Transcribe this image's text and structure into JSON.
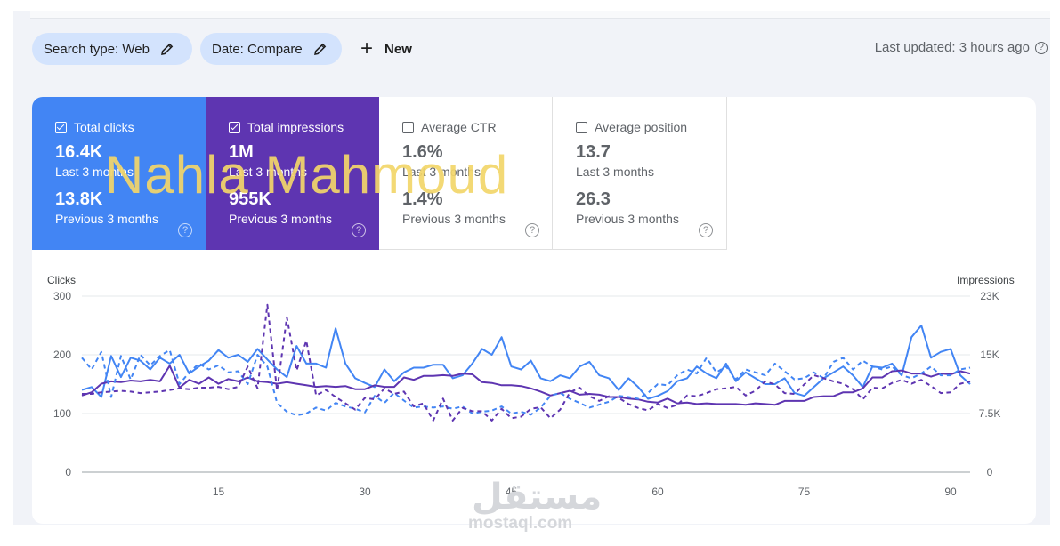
{
  "filters": {
    "search_type": "Search type: Web",
    "date": "Date: Compare",
    "new_label": "New",
    "last_updated": "Last updated: 3 hours ago"
  },
  "metrics": [
    {
      "label": "Total clicks",
      "checked": true,
      "value": "16.4K",
      "period": "Last 3 months",
      "prev_value": "13.8K",
      "prev_period": "Previous 3 months",
      "color": "#4285f4"
    },
    {
      "label": "Total impressions",
      "checked": true,
      "value": "1M",
      "period": "Last 3 months",
      "prev_value": "955K",
      "prev_period": "Previous 3 months",
      "color": "#5e35b1"
    },
    {
      "label": "Average CTR",
      "checked": false,
      "value": "1.6%",
      "period": "Last 3 months",
      "prev_value": "1.4%",
      "prev_period": "Previous 3 months"
    },
    {
      "label": "Average position",
      "checked": false,
      "value": "13.7",
      "period": "Last 3 months",
      "prev_value": "26.3",
      "prev_period": "Previous 3 months"
    }
  ],
  "watermark": {
    "name": "Nahla Mahmoud",
    "logo_ar": "مستقل",
    "logo_en": "mostaql.com"
  },
  "chart_data": {
    "type": "line",
    "ylabel_left": "Clicks",
    "ylabel_right": "Impressions",
    "ylim_left": [
      0,
      300
    ],
    "ylim_right": [
      0,
      22500
    ],
    "y_ticks_left": [
      "300",
      "200",
      "100",
      "0"
    ],
    "y_ticks_right": [
      "23K",
      "15K",
      "7.5K",
      "0"
    ],
    "x_ticks": [
      "15",
      "30",
      "45",
      "60",
      "75",
      "90"
    ],
    "x_range": [
      1,
      92
    ],
    "grid": true,
    "series": [
      {
        "name": "Total clicks",
        "axis": "left",
        "style": "solid",
        "color": "#4285f4",
        "values": [
          140,
          145,
          128,
          198,
          162,
          195,
          190,
          175,
          195,
          185,
          200,
          168,
          180,
          190,
          208,
          195,
          200,
          188,
          210,
          192,
          175,
          162,
          215,
          185,
          185,
          178,
          245,
          185,
          160,
          152,
          145,
          175,
          155,
          170,
          178,
          178,
          183,
          183,
          160,
          165,
          185,
          210,
          200,
          230,
          180,
          175,
          190,
          160,
          155,
          165,
          160,
          180,
          188,
          165,
          160,
          140,
          160,
          145,
          125,
          130,
          138,
          155,
          160,
          180,
          168,
          160,
          185,
          155,
          170,
          160,
          150,
          150,
          160,
          135,
          130,
          145,
          160,
          170,
          180,
          165,
          145,
          180,
          178,
          185,
          165,
          230,
          250,
          195,
          205,
          210,
          165,
          150
        ]
      },
      {
        "name": "Total impressions",
        "axis": "right",
        "style": "solid",
        "color": "#5e35b1",
        "values": [
          9800,
          10200,
          11300,
          11600,
          11500,
          11700,
          11600,
          11800,
          11600,
          13600,
          10800,
          11800,
          11300,
          12100,
          11300,
          11900,
          11600,
          12100,
          11600,
          11500,
          11300,
          11500,
          11300,
          11100,
          10900,
          11000,
          10900,
          11000,
          10600,
          10600,
          11100,
          10900,
          10900,
          12100,
          11800,
          12300,
          12300,
          12400,
          12300,
          12600,
          12500,
          11500,
          11400,
          11100,
          11100,
          11000,
          10700,
          10300,
          9800,
          10100,
          10400,
          9900,
          10000,
          9900,
          9600,
          9600,
          9400,
          9300,
          9000,
          8900,
          9400,
          8800,
          8900,
          8700,
          8800,
          8700,
          8700,
          8700,
          8600,
          8800,
          8700,
          8600,
          9100,
          9100,
          9100,
          9600,
          9700,
          9700,
          10200,
          10200,
          10700,
          12100,
          12100,
          12900,
          13000,
          12600,
          12600,
          12200,
          12600,
          12500,
          12900,
          12600
        ]
      },
      {
        "name": "Total clicks (previous)",
        "axis": "left",
        "style": "dashed",
        "color": "#4285f4",
        "values": [
          195,
          175,
          205,
          128,
          198,
          158,
          200,
          182,
          198,
          208,
          150,
          170,
          185,
          175,
          182,
          170,
          172,
          150,
          200,
          180,
          118,
          103,
          97,
          100,
          110,
          105,
          118,
          112,
          108,
          102,
          130,
          118,
          135,
          122,
          110,
          112,
          110,
          112,
          108,
          112,
          100,
          103,
          105,
          112,
          100,
          103,
          98,
          110,
          130,
          135,
          125,
          118,
          110,
          115,
          120,
          130,
          128,
          125,
          135,
          150,
          148,
          165,
          175,
          168,
          195,
          170,
          180,
          158,
          175,
          170,
          165,
          185,
          172,
          158,
          160,
          170,
          160,
          188,
          195,
          175,
          190,
          180,
          175,
          180,
          165,
          160,
          168,
          180,
          165,
          165,
          175,
          178
        ]
      },
      {
        "name": "Total impressions (previous)",
        "axis": "right",
        "style": "dashed",
        "color": "#5e35b1",
        "values": [
          10000,
          10000,
          10200,
          10300,
          10400,
          10300,
          10100,
          10200,
          10300,
          10500,
          10700,
          10600,
          10800,
          10800,
          10900,
          10600,
          10900,
          13500,
          10700,
          21400,
          10400,
          19800,
          13000,
          16800,
          9800,
          10500,
          9600,
          8800,
          8000,
          9500,
          9300,
          10700,
          10000,
          10300,
          8400,
          8800,
          6600,
          9400,
          6600,
          8200,
          7800,
          7800,
          6600,
          8100,
          6900,
          7100,
          8100,
          8300,
          6900,
          8000,
          10200,
          10800,
          9700,
          9100,
          9700,
          9500,
          8700,
          8200,
          7900,
          8700,
          8200,
          8600,
          9800,
          9700,
          10100,
          10600,
          10700,
          10900,
          9800,
          10400,
          11600,
          11200,
          10100,
          10000,
          11200,
          12400,
          12000,
          11600,
          11300,
          10600,
          9300,
          10800,
          10700,
          11400,
          11800,
          11300,
          11800,
          11000,
          10100,
          10200,
          11300,
          11600
        ]
      }
    ]
  }
}
